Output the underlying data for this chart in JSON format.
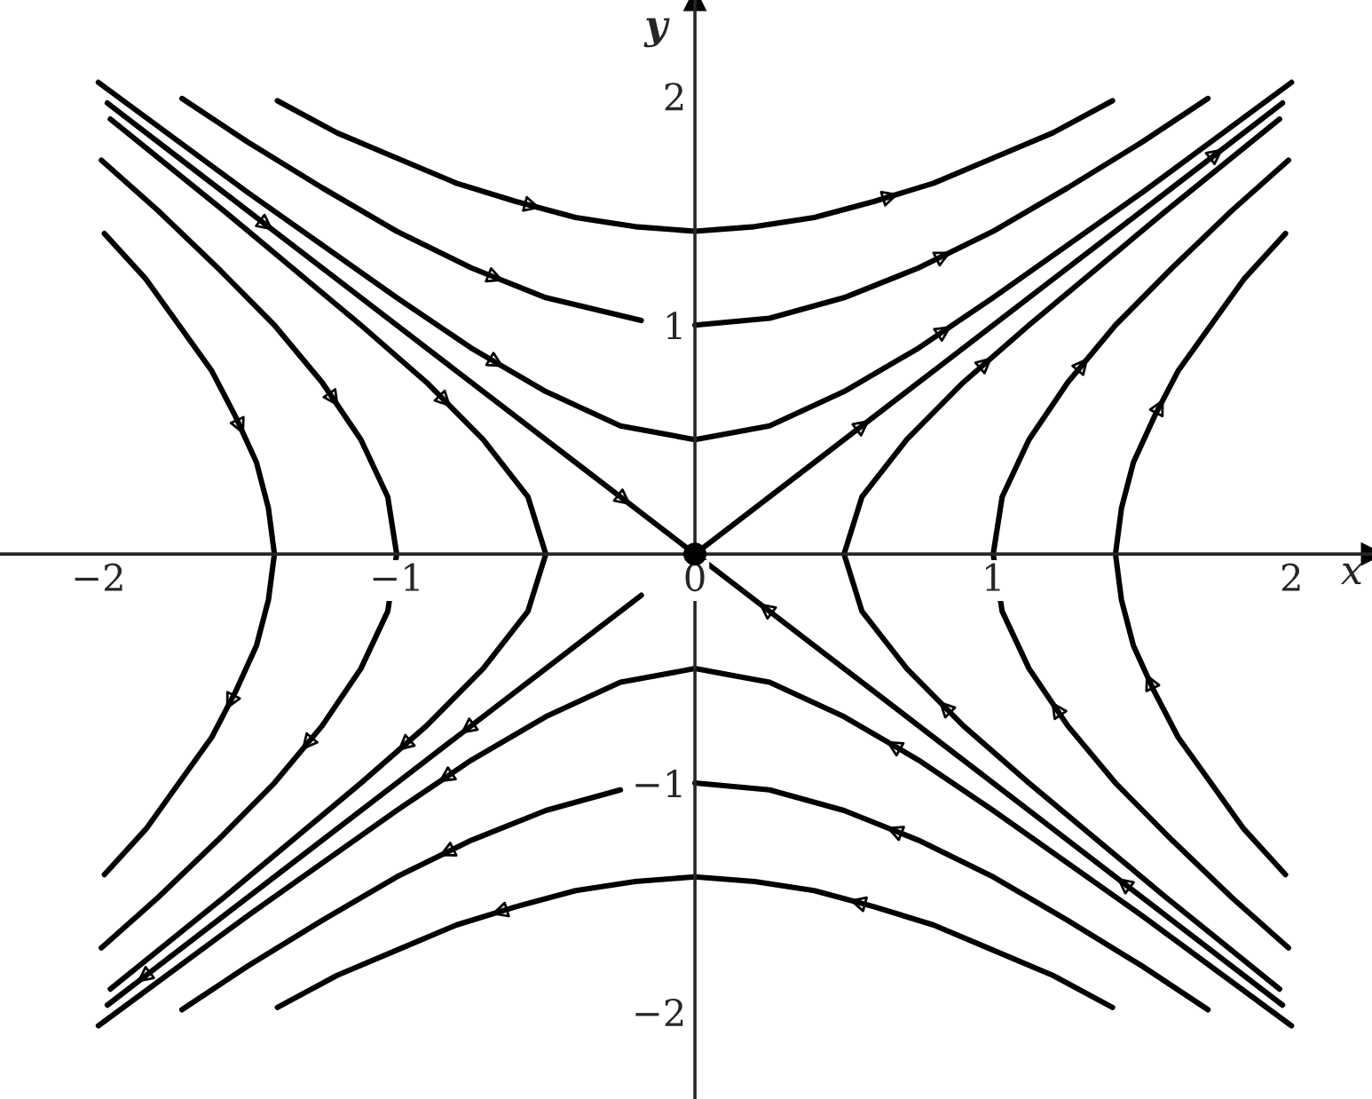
{
  "chart_data": {
    "type": "line",
    "xlabel": "x",
    "ylabel": "y",
    "xlim": [
      -2.33,
      2.27
    ],
    "ylim": [
      -2.38,
      2.42
    ],
    "xticks": [
      {
        "value": -2,
        "label": "−2"
      },
      {
        "value": -1,
        "label": "−1"
      },
      0,
      1,
      2
    ],
    "yticks": [
      {
        "value": -2,
        "label": "−2"
      },
      {
        "value": -1,
        "label": "−1"
      },
      1,
      2
    ],
    "grid": false,
    "marker": "none",
    "line_style": "solid",
    "series": [
      {
        "color": "#000000",
        "x": [
          -1.4,
          -1.2,
          -1.0,
          -0.8,
          -0.6,
          -0.4,
          -0.2,
          0,
          0.2,
          0.4,
          0.6,
          0.8,
          1.0,
          1.2,
          1.4
        ],
        "values": [
          1.98,
          1.84,
          1.73,
          1.62,
          1.54,
          1.47,
          1.43,
          1.41,
          1.43,
          1.47,
          1.54,
          1.62,
          1.73,
          1.84,
          1.98
        ]
      },
      {
        "color": "#000000",
        "x": [
          -1.72,
          -1.5,
          -1.25,
          -1.0,
          -0.75,
          -0.5,
          -0.18,
          -0.09,
          0,
          0.25,
          0.5,
          0.75,
          1.0,
          1.25,
          1.5,
          1.72
        ],
        "values": [
          1.99,
          1.8,
          1.6,
          1.41,
          1.25,
          1.12,
          1.02,
          null,
          1.0,
          1.03,
          1.12,
          1.25,
          1.41,
          1.6,
          1.8,
          1.99
        ]
      },
      {
        "color": "#000000",
        "x": [
          -2,
          -1.5,
          -1,
          -0.75,
          -0.5,
          -0.25,
          0,
          0.25,
          0.5,
          0.75,
          1,
          1.5,
          2
        ],
        "values": [
          2.06,
          1.58,
          1.12,
          0.9,
          0.71,
          0.56,
          0.5,
          0.56,
          0.71,
          0.9,
          1.12,
          1.58,
          2.06
        ]
      },
      {
        "color": "#000000",
        "x": [
          1.4,
          1.2,
          1.0,
          0.8,
          0.6,
          0.4,
          0.2,
          0,
          -0.2,
          -0.4,
          -0.6,
          -0.8,
          -1.0,
          -1.2,
          -1.4
        ],
        "values": [
          -1.98,
          -1.84,
          -1.73,
          -1.62,
          -1.54,
          -1.47,
          -1.43,
          -1.41,
          -1.43,
          -1.47,
          -1.54,
          -1.62,
          -1.73,
          -1.84,
          -1.98
        ]
      },
      {
        "color": "#000000",
        "x": [
          1.72,
          1.5,
          1.25,
          1.0,
          0.75,
          0.5,
          0.25,
          0,
          -0.12,
          -0.25,
          -0.5,
          -0.75,
          -1,
          -1.25,
          -1.5,
          -1.72
        ],
        "values": [
          -1.99,
          -1.8,
          -1.6,
          -1.41,
          -1.25,
          -1.12,
          -1.03,
          -1.0,
          null,
          -1.03,
          -1.12,
          -1.25,
          -1.41,
          -1.6,
          -1.8,
          -1.99
        ]
      },
      {
        "color": "#000000",
        "x": [
          2,
          1.5,
          1,
          0.75,
          0.5,
          0.25,
          0,
          -0.25,
          -0.5,
          -0.75,
          -1,
          -1.5,
          -2
        ],
        "values": [
          -2.06,
          -1.58,
          -1.12,
          -0.9,
          -0.71,
          -0.56,
          -0.5,
          -0.56,
          -0.71,
          -0.9,
          -1.12,
          -1.58,
          -2.06
        ]
      },
      {
        "color": "#000000",
        "x": [
          -1.98,
          -1.84,
          -1.73,
          -1.62,
          -1.54,
          -1.47,
          -1.43,
          -1.41,
          -1.43,
          -1.47,
          -1.54,
          -1.62,
          -1.73,
          -1.84,
          -1.98
        ],
        "values": [
          1.4,
          1.2,
          1.0,
          0.8,
          0.6,
          0.4,
          0.2,
          0,
          -0.2,
          -0.4,
          -0.6,
          -0.8,
          -1.0,
          -1.2,
          -1.4
        ]
      },
      {
        "color": "#000000",
        "x": [
          -1.99,
          -1.8,
          -1.6,
          -1.41,
          -1.25,
          -1.12,
          -1.03,
          -1.0,
          -1.03,
          -1.12,
          -1.25,
          -1.41,
          -1.6,
          -1.8,
          -1.99
        ],
        "values": [
          1.72,
          1.5,
          1.25,
          1.0,
          0.75,
          0.5,
          0.25,
          0,
          -0.25,
          -0.5,
          -0.75,
          -1.0,
          -1.25,
          -1.5,
          -1.72
        ]
      },
      {
        "color": "#000000",
        "x": [
          -1.96,
          -1.58,
          -1.12,
          -0.9,
          -0.71,
          -0.56,
          -0.5,
          -0.56,
          -0.71,
          -0.9,
          -1.12,
          -1.58,
          -1.96
        ],
        "values": [
          1.9,
          1.5,
          1.0,
          0.75,
          0.5,
          0.25,
          0,
          -0.25,
          -0.5,
          -0.75,
          -1.0,
          -1.5,
          -1.9
        ]
      },
      {
        "color": "#000000",
        "x": [
          1.98,
          1.84,
          1.73,
          1.62,
          1.54,
          1.47,
          1.43,
          1.41,
          1.43,
          1.47,
          1.54,
          1.62,
          1.73,
          1.84,
          1.98
        ],
        "values": [
          -1.4,
          -1.2,
          -1.0,
          -0.8,
          -0.6,
          -0.4,
          -0.2,
          0,
          0.2,
          0.4,
          0.6,
          0.8,
          1.0,
          1.2,
          1.4
        ]
      },
      {
        "color": "#000000",
        "x": [
          1.99,
          1.8,
          1.6,
          1.41,
          1.25,
          1.12,
          1.03,
          1.0,
          1.03,
          1.12,
          1.25,
          1.41,
          1.6,
          1.8,
          1.99
        ],
        "values": [
          -1.72,
          -1.5,
          -1.25,
          -1.0,
          -0.75,
          -0.5,
          -0.25,
          0,
          0.25,
          0.5,
          0.75,
          1.0,
          1.25,
          1.5,
          1.72
        ]
      },
      {
        "color": "#000000",
        "x": [
          1.96,
          1.58,
          1.12,
          0.9,
          0.71,
          0.56,
          0.5,
          0.56,
          0.71,
          0.9,
          1.12,
          1.58,
          1.96
        ],
        "values": [
          -1.9,
          -1.5,
          -1.0,
          -0.75,
          -0.5,
          -0.25,
          0,
          0.25,
          0.5,
          0.75,
          1.0,
          1.5,
          1.9
        ]
      },
      {
        "color": "#000000",
        "x": [
          0,
          0.4,
          0.8,
          1.2,
          1.6,
          1.97
        ],
        "values": [
          0,
          0.4,
          0.8,
          1.2,
          1.6,
          1.97
        ]
      },
      {
        "color": "#000000",
        "x": [
          -0.18,
          -0.6,
          -1.0,
          -1.4,
          -1.8,
          -1.97
        ],
        "values": [
          -0.18,
          -0.6,
          -1.0,
          -1.4,
          -1.8,
          -1.97
        ]
      },
      {
        "color": "#000000",
        "x": [
          -1.97,
          -1.6,
          -1.2,
          -0.8,
          -0.4,
          0
        ],
        "values": [
          1.97,
          1.6,
          1.2,
          0.8,
          0.4,
          0
        ]
      },
      {
        "color": "#000000",
        "x": [
          1.97,
          1.6,
          1.2,
          0.8,
          0.4,
          0
        ],
        "values": [
          -1.97,
          -1.6,
          -1.2,
          -0.8,
          -0.4,
          0
        ]
      },
      {
        "type": "scatter",
        "marker": "circle",
        "color": "#000000",
        "x": [
          0
        ],
        "values": [
          0
        ]
      }
    ]
  }
}
